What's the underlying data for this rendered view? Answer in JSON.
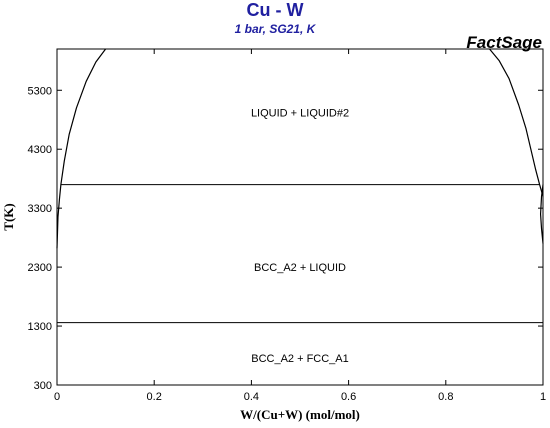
{
  "header": {
    "title": "Cu - W",
    "subtitle": "1 bar, SG21, K",
    "brand": "FactSage"
  },
  "colors": {
    "title": "#2020a0",
    "axes": "#000000",
    "lines": "#000000",
    "background": "#ffffff"
  },
  "chart_data": {
    "type": "line",
    "xlabel": "W/(Cu+W) (mol/mol)",
    "ylabel": "T(K)",
    "xlim": [
      0,
      1
    ],
    "ylim": [
      300,
      6000
    ],
    "xticks": [
      {
        "value": 0,
        "label": "0"
      },
      {
        "value": 0.2,
        "label": "0.2"
      },
      {
        "value": 0.4,
        "label": "0.4"
      },
      {
        "value": 0.6,
        "label": "0.6"
      },
      {
        "value": 0.8,
        "label": "0.8"
      },
      {
        "value": 1,
        "label": "1"
      }
    ],
    "yticks": [
      {
        "value": 300,
        "label": "300"
      },
      {
        "value": 1300,
        "label": "1300"
      },
      {
        "value": 2300,
        "label": "2300"
      },
      {
        "value": 3300,
        "label": "3300"
      },
      {
        "value": 4300,
        "label": "4300"
      },
      {
        "value": 5300,
        "label": "5300"
      }
    ],
    "grid": false,
    "series": [
      {
        "kind": "horizontal",
        "y": 1358,
        "x": [
          0,
          1
        ]
      },
      {
        "kind": "horizontal",
        "y": 3700,
        "x": [
          0.008,
          0.993
        ]
      },
      {
        "kind": "curve",
        "x": [
          0.0,
          0.002,
          0.005,
          0.008,
          0.015,
          0.025,
          0.04,
          0.06,
          0.08,
          0.1
        ],
        "y": [
          2620,
          3150,
          3450,
          3700,
          4100,
          4550,
          5000,
          5450,
          5780,
          6000
        ]
      },
      {
        "kind": "curve",
        "x": [
          0.89,
          0.91,
          0.93,
          0.95,
          0.965,
          0.975,
          0.985,
          0.993,
          1.0
        ],
        "y": [
          6000,
          5800,
          5500,
          5050,
          4650,
          4300,
          3950,
          3700,
          3500
        ]
      },
      {
        "kind": "curve",
        "x": [
          1.0,
          0.997,
          0.995,
          0.997,
          1.0
        ],
        "y": [
          3700,
          3500,
          3200,
          2950,
          2700
        ]
      }
    ],
    "annotations": [
      {
        "text": "LIQUID + LIQUID#2",
        "x": 0.5,
        "y": 4920
      },
      {
        "text": "BCC_A2 + LIQUID",
        "x": 0.5,
        "y": 2300
      },
      {
        "text": "BCC_A2 + FCC_A1",
        "x": 0.5,
        "y": 760
      }
    ]
  }
}
